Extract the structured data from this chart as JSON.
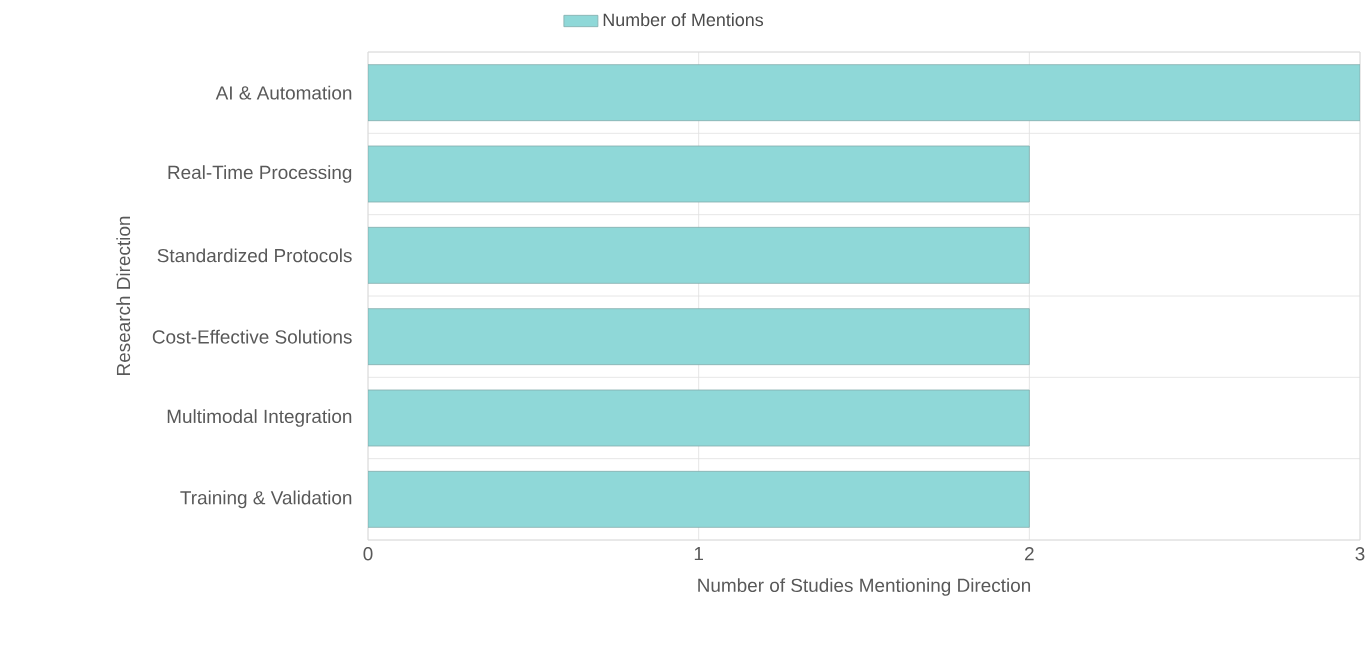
{
  "chart_data": {
    "type": "bar",
    "orientation": "horizontal",
    "xlabel": "Number of Studies Mentioning Direction",
    "ylabel": "Research Direction",
    "categories": [
      "AI & Automation",
      "Real-Time Processing",
      "Standardized Protocols",
      "Cost-Effective Solutions",
      "Multimodal Integration",
      "Training & Validation"
    ],
    "series": [
      {
        "name": "Number of Mentions",
        "color": "#8fd8d8",
        "values": [
          3,
          2,
          2,
          2,
          2,
          2
        ]
      }
    ],
    "xlim": [
      0,
      3
    ],
    "xticks": [
      0,
      1,
      2,
      3
    ],
    "grid": true,
    "legend": "top"
  }
}
